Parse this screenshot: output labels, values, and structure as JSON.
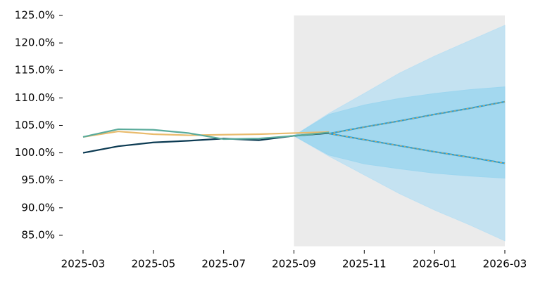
{
  "chart_data": {
    "type": "line",
    "categories": [
      "2025-03",
      null,
      "2025-05",
      null,
      "2025-07",
      null,
      "2025-09",
      null,
      "2025-11",
      null,
      "2026-01",
      null,
      "2026-03"
    ],
    "ylim": [
      83,
      125
    ],
    "yticks": [
      {
        "value": 85,
        "label": "85.0%"
      },
      {
        "value": 90,
        "label": "90.0%"
      },
      {
        "value": 95,
        "label": "95.0%"
      },
      {
        "value": 100,
        "label": "100.0%"
      },
      {
        "value": 105,
        "label": "105.0%"
      },
      {
        "value": 110,
        "label": "110.0%"
      },
      {
        "value": 115,
        "label": "115.0%"
      },
      {
        "value": 120,
        "label": "120.0%"
      },
      {
        "value": 125,
        "label": "125.0%"
      }
    ],
    "grid": false,
    "shade_color": "#ebebeb",
    "bands": [
      {
        "color": "#bde0f2",
        "lower": [
          null,
          null,
          null,
          null,
          null,
          null,
          103.1,
          99.4,
          96.0,
          92.6,
          89.6,
          86.9,
          84.0
        ],
        "upper": [
          null,
          null,
          null,
          null,
          null,
          null,
          103.1,
          107.2,
          110.8,
          114.5,
          117.6,
          120.4,
          123.2
        ]
      },
      {
        "color": "#9dd6ef",
        "lower": [
          null,
          null,
          null,
          null,
          null,
          null,
          103.1,
          99.6,
          98.0,
          97.1,
          96.3,
          95.8,
          95.4
        ],
        "upper": [
          null,
          null,
          null,
          null,
          null,
          null,
          103.1,
          107.0,
          108.7,
          109.9,
          110.8,
          111.5,
          112.0
        ]
      }
    ],
    "series": [
      {
        "color": "#0b3a52",
        "values": [
          100.0,
          101.2,
          101.9,
          102.2,
          102.6,
          102.3,
          103.1,
          103.6,
          null,
          null,
          null,
          null,
          null
        ]
      },
      {
        "color": "#e9bb6d",
        "values": [
          102.9,
          103.9,
          103.4,
          103.2,
          103.3,
          103.4,
          103.6,
          103.8,
          null,
          null,
          null,
          null,
          null
        ]
      },
      {
        "color": "#5aab9b",
        "values": [
          102.9,
          104.3,
          104.2,
          103.6,
          102.5,
          102.6,
          103.1,
          103.7,
          null,
          null,
          null,
          null,
          null
        ]
      },
      {
        "color": "#2a9fd0",
        "dashed": true,
        "values": [
          null,
          null,
          null,
          null,
          null,
          null,
          null,
          103.5,
          104.7,
          105.8,
          107.0,
          108.1,
          109.3
        ]
      },
      {
        "color": "#2a9fd0",
        "dashed": true,
        "values": [
          null,
          null,
          null,
          null,
          null,
          null,
          null,
          103.5,
          102.4,
          101.3,
          100.2,
          99.2,
          98.1
        ]
      }
    ]
  }
}
